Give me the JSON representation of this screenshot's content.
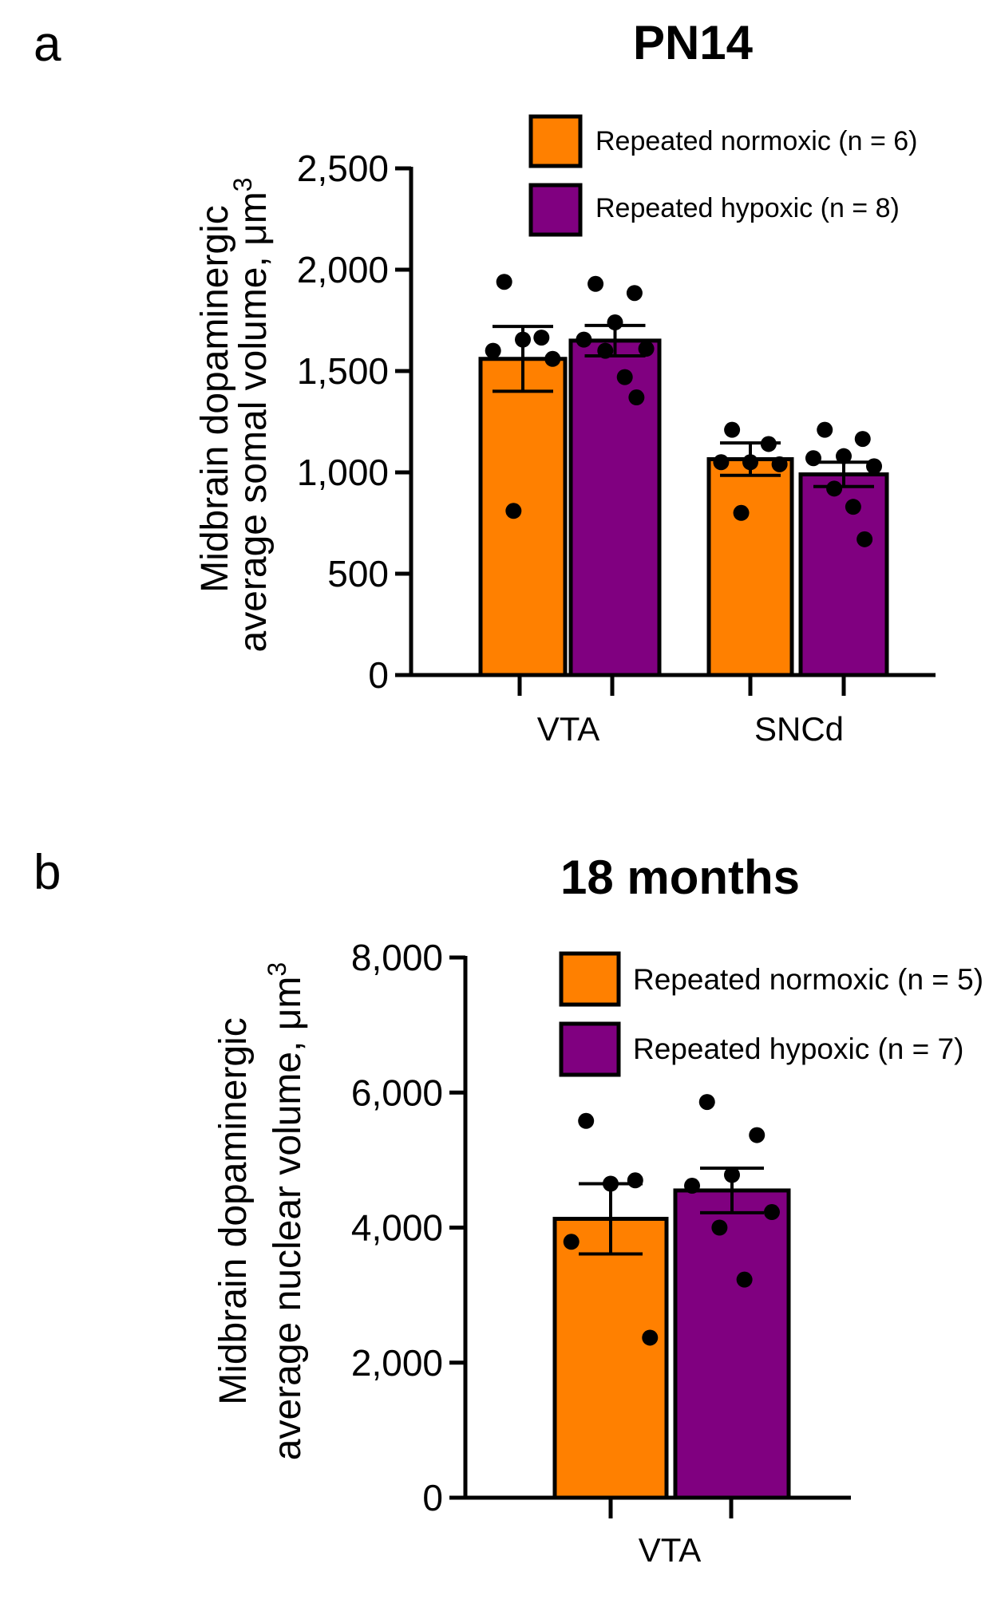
{
  "panels": [
    {
      "letter": "a",
      "title": "PN14"
    },
    {
      "letter": "b",
      "title": "18 months"
    }
  ],
  "colors": {
    "normoxic": "#ff8000",
    "hypoxic": "#800080",
    "axis": "#000000"
  },
  "chart_data": [
    {
      "type": "bar",
      "title": "PN14",
      "ylabel_line1": "Midbrain dopaminergic",
      "ylabel_line2": "average somal volume, μm",
      "ylabel_sup": "3",
      "ylim": [
        0,
        2500
      ],
      "yticks": [
        0,
        500,
        1000,
        1500,
        2000,
        2500
      ],
      "ytick_labels": [
        "0",
        "500",
        "1,000",
        "1,500",
        "2,000",
        "2,500"
      ],
      "categories": [
        "VTA",
        "SNCd"
      ],
      "series": [
        {
          "name": "Repeated normoxic (n = 6)",
          "key": "normoxic",
          "values": [
            1560,
            1065
          ],
          "sem": [
            160,
            80
          ],
          "points": [
            [
              1940,
              1665,
              1655,
              1600,
              1560,
              810
            ],
            [
              1210,
              1140,
              1050,
              1050,
              1040,
              800
            ]
          ]
        },
        {
          "name": "Repeated hypoxic (n = 8)",
          "key": "hypoxic",
          "values": [
            1650,
            990
          ],
          "sem": [
            75,
            60
          ],
          "points": [
            [
              1930,
              1885,
              1740,
              1655,
              1610,
              1600,
              1470,
              1370
            ],
            [
              1210,
              1165,
              1080,
              1070,
              1030,
              920,
              830,
              670
            ]
          ]
        }
      ],
      "legend": "top-right"
    },
    {
      "type": "bar",
      "title": "18 months",
      "ylabel_line1": "Midbrain dopaminergic",
      "ylabel_line2": "average nuclear volume, μm",
      "ylabel_sup": "3",
      "ylim": [
        0,
        8000
      ],
      "yticks": [
        0,
        2000,
        4000,
        6000,
        8000
      ],
      "ytick_labels": [
        "0",
        "2,000",
        "4,000",
        "6,000",
        "8,000"
      ],
      "categories": [
        "VTA"
      ],
      "series": [
        {
          "name": "Repeated normoxic (n = 5)",
          "key": "normoxic",
          "values": [
            4130
          ],
          "sem": [
            520
          ],
          "points": [
            [
              5580,
              4700,
              4650,
              3790,
              2370
            ]
          ]
        },
        {
          "name": "Repeated hypoxic (n = 7)",
          "key": "hypoxic",
          "values": [
            4550
          ],
          "sem": [
            330
          ],
          "points": [
            [
              5860,
              5370,
              4780,
              4620,
              4230,
              4000,
              3230
            ]
          ]
        }
      ],
      "legend": "top-right"
    }
  ]
}
